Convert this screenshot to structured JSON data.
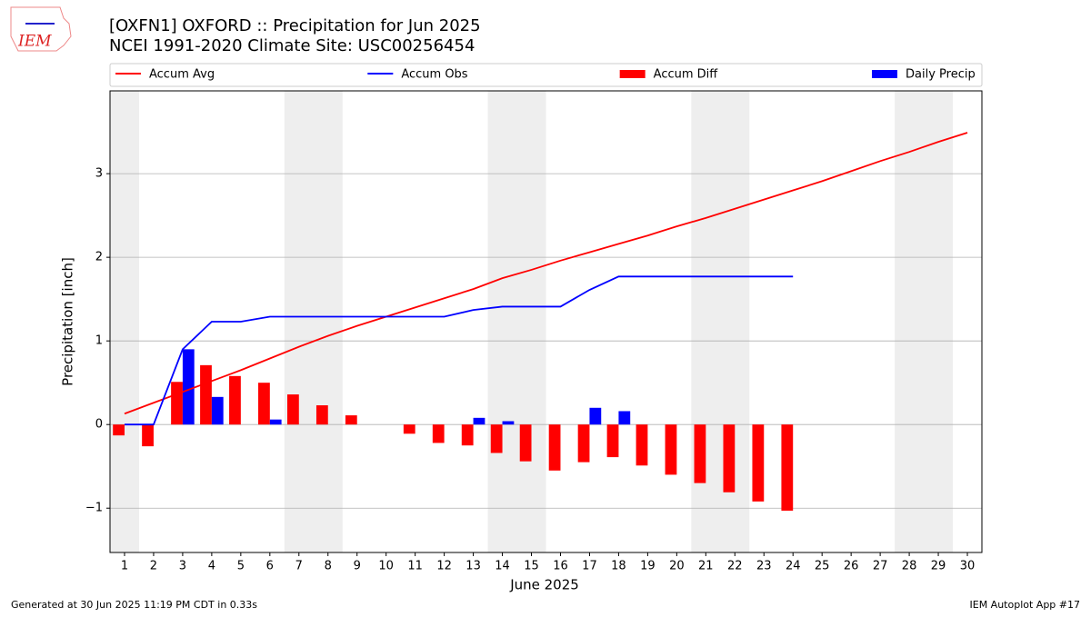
{
  "chart_data": {
    "type": "bar",
    "title": "[OXFN1] OXFORD :: Precipitation for Jun 2025",
    "subtitle": "NCEI 1991-2020 Climate Site: USC00256454",
    "xlabel": "June 2025",
    "ylabel": "Precipitation [inch]",
    "footer_left": "Generated at 30 Jun 2025 11:19 PM CDT in 0.33s",
    "footer_right": "IEM Autoplot App #17",
    "logo_text": "IEM",
    "x": [
      1,
      2,
      3,
      4,
      5,
      6,
      7,
      8,
      9,
      10,
      11,
      12,
      13,
      14,
      15,
      16,
      17,
      18,
      19,
      20,
      21,
      22,
      23,
      24,
      25,
      26,
      27,
      28,
      29,
      30
    ],
    "xlim": [
      0.5,
      30.5
    ],
    "xticks": [
      1,
      2,
      3,
      4,
      5,
      6,
      7,
      8,
      9,
      10,
      11,
      12,
      13,
      14,
      15,
      16,
      17,
      18,
      19,
      20,
      21,
      22,
      23,
      24,
      25,
      26,
      27,
      28,
      29,
      30
    ],
    "ylim": [
      -1.53,
      3.99
    ],
    "yticks": [
      {
        "value": -1,
        "label": "−1"
      },
      0,
      1,
      2,
      3
    ],
    "grid": true,
    "legend": "top",
    "weekend_spans": [
      [
        0.5,
        1.5
      ],
      [
        6.5,
        8.5
      ],
      [
        13.5,
        15.5
      ],
      [
        20.5,
        22.5
      ],
      [
        27.5,
        29.5
      ]
    ],
    "series": [
      {
        "name": "Accum Avg",
        "kind": "line",
        "color": "#ff0000",
        "values": [
          0.13,
          0.26,
          0.39,
          0.52,
          0.65,
          0.79,
          0.93,
          1.06,
          1.18,
          1.29,
          1.4,
          1.51,
          1.62,
          1.75,
          1.85,
          1.96,
          2.06,
          2.16,
          2.26,
          2.37,
          2.47,
          2.58,
          2.69,
          2.8,
          2.91,
          3.03,
          3.15,
          3.26,
          3.38,
          3.49
        ]
      },
      {
        "name": "Accum Obs",
        "kind": "line",
        "color": "#0000ff",
        "values": [
          0,
          0,
          0.9,
          1.23,
          1.23,
          1.29,
          1.29,
          1.29,
          1.29,
          1.29,
          1.29,
          1.29,
          1.37,
          1.41,
          1.41,
          1.41,
          1.61,
          1.77,
          1.77,
          1.77,
          1.77,
          1.77,
          1.77,
          1.77,
          null,
          null,
          null,
          null,
          null,
          null
        ]
      },
      {
        "name": "Accum Diff",
        "kind": "bar",
        "color": "#ff0000",
        "values": [
          -0.13,
          -0.26,
          0.51,
          0.71,
          0.58,
          0.5,
          0.36,
          0.23,
          0.11,
          0.0,
          -0.11,
          -0.22,
          -0.25,
          -0.34,
          -0.44,
          -0.55,
          -0.45,
          -0.39,
          -0.49,
          -0.6,
          -0.7,
          -0.81,
          -0.92,
          -1.03,
          null,
          null,
          null,
          null,
          null,
          null
        ]
      },
      {
        "name": "Daily Precip",
        "kind": "bar",
        "color": "#0000ff",
        "values": [
          0,
          0,
          0.9,
          0.33,
          0,
          0.06,
          0,
          0,
          0,
          0,
          0,
          0,
          0.08,
          0.04,
          0,
          0,
          0.2,
          0.16,
          0,
          0,
          0,
          0,
          0,
          0,
          null,
          null,
          null,
          null,
          null,
          null
        ]
      }
    ]
  }
}
